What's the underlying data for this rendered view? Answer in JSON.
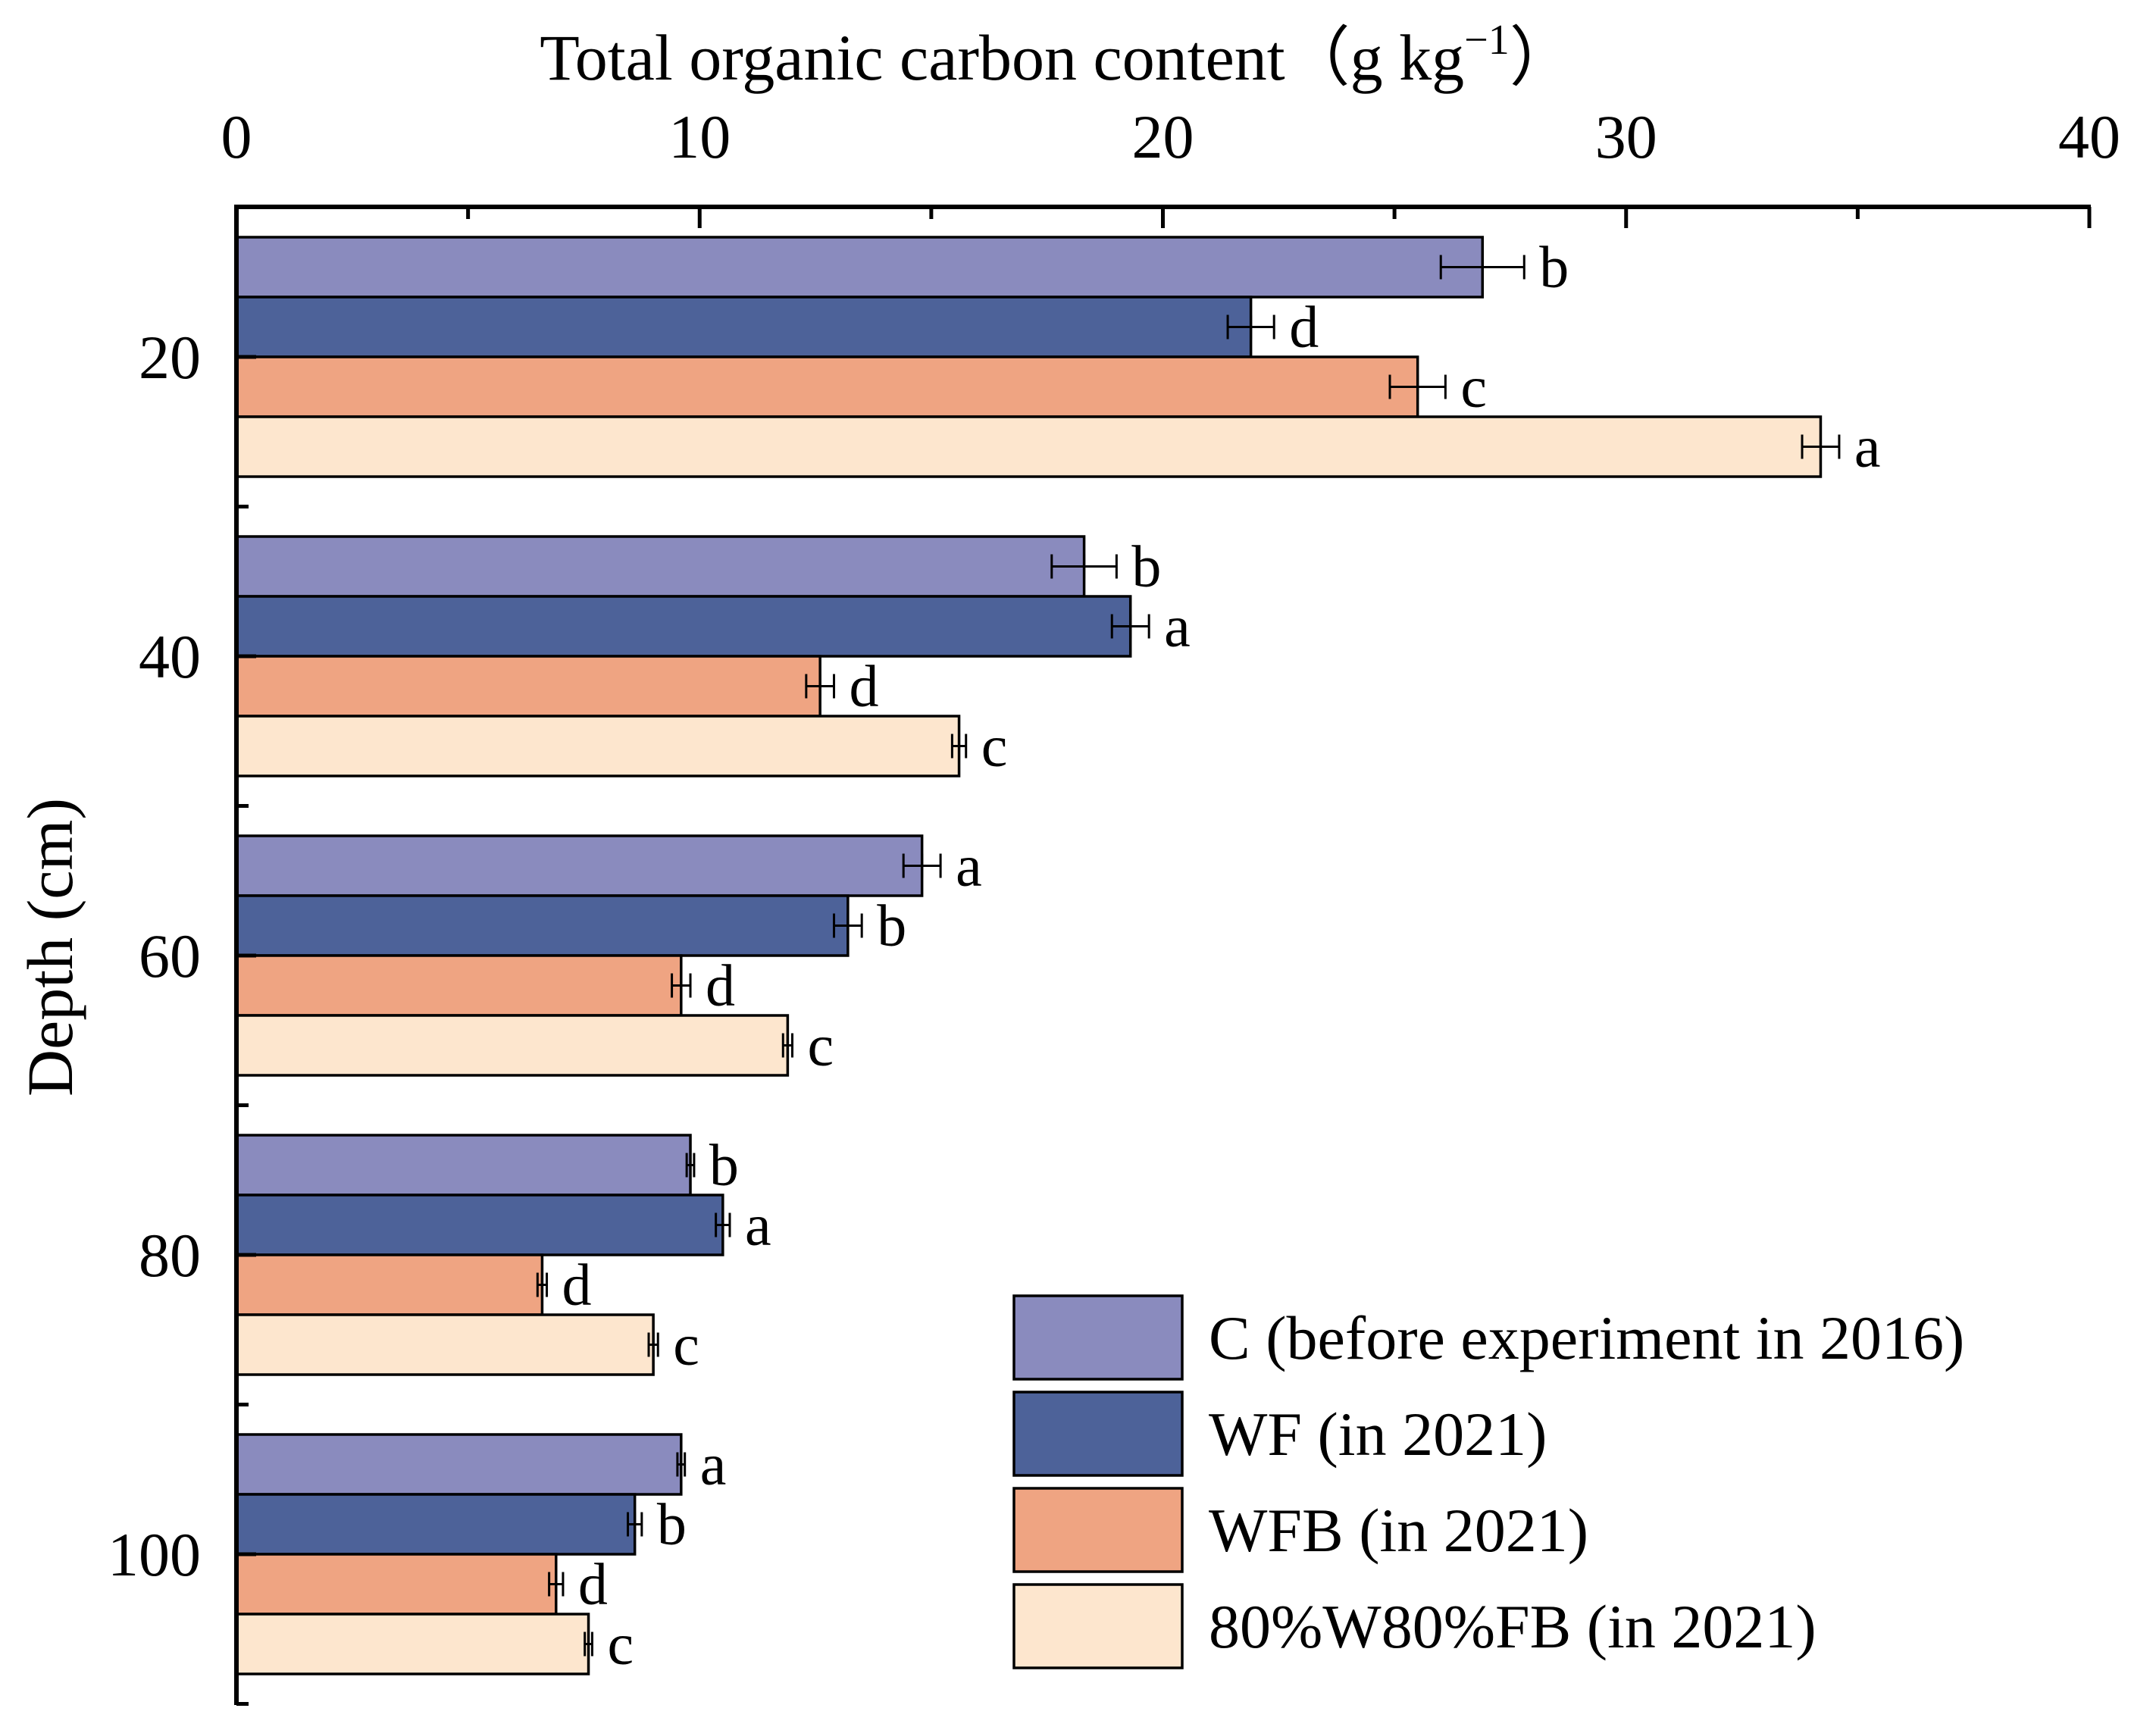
{
  "chart_data": {
    "type": "bar",
    "orientation": "horizontal",
    "xlabel": "Total organic carbon content",
    "xlabel_unit": "g kg",
    "xlabel_exp": "−1",
    "ylabel": "Depth (cm)",
    "xlim": [
      0,
      40
    ],
    "x_ticks": [
      "0",
      "10",
      "20",
      "30",
      "40"
    ],
    "categories": [
      "20",
      "40",
      "60",
      "80",
      "100"
    ],
    "series": [
      {
        "name": "C (before experiment in 2016)",
        "color": "#8A8BBE",
        "values": [
          26.9,
          18.3,
          14.8,
          9.8,
          9.6
        ],
        "errors": [
          0.9,
          0.7,
          0.4,
          0.08,
          0.08
        ],
        "letters": [
          "b",
          "b",
          "a",
          "b",
          "a"
        ]
      },
      {
        "name": "WF (in 2021)",
        "color": "#4D6299",
        "values": [
          21.9,
          19.3,
          13.2,
          10.5,
          8.6
        ],
        "errors": [
          0.5,
          0.4,
          0.3,
          0.15,
          0.15
        ],
        "letters": [
          "d",
          "a",
          "b",
          "a",
          "b"
        ]
      },
      {
        "name": "WFB (in 2021)",
        "color": "#EFA482",
        "values": [
          25.5,
          12.6,
          9.6,
          6.6,
          6.9
        ],
        "errors": [
          0.6,
          0.3,
          0.2,
          0.1,
          0.15
        ],
        "letters": [
          "c",
          "d",
          "d",
          "d",
          "d"
        ]
      },
      {
        "name": "80%W80%FB (in 2021)",
        "color": "#FDE6CE",
        "values": [
          34.2,
          15.6,
          11.9,
          9.0,
          7.6
        ],
        "errors": [
          0.4,
          0.15,
          0.1,
          0.1,
          0.08
        ],
        "letters": [
          "a",
          "c",
          "c",
          "c",
          "c"
        ]
      }
    ]
  }
}
